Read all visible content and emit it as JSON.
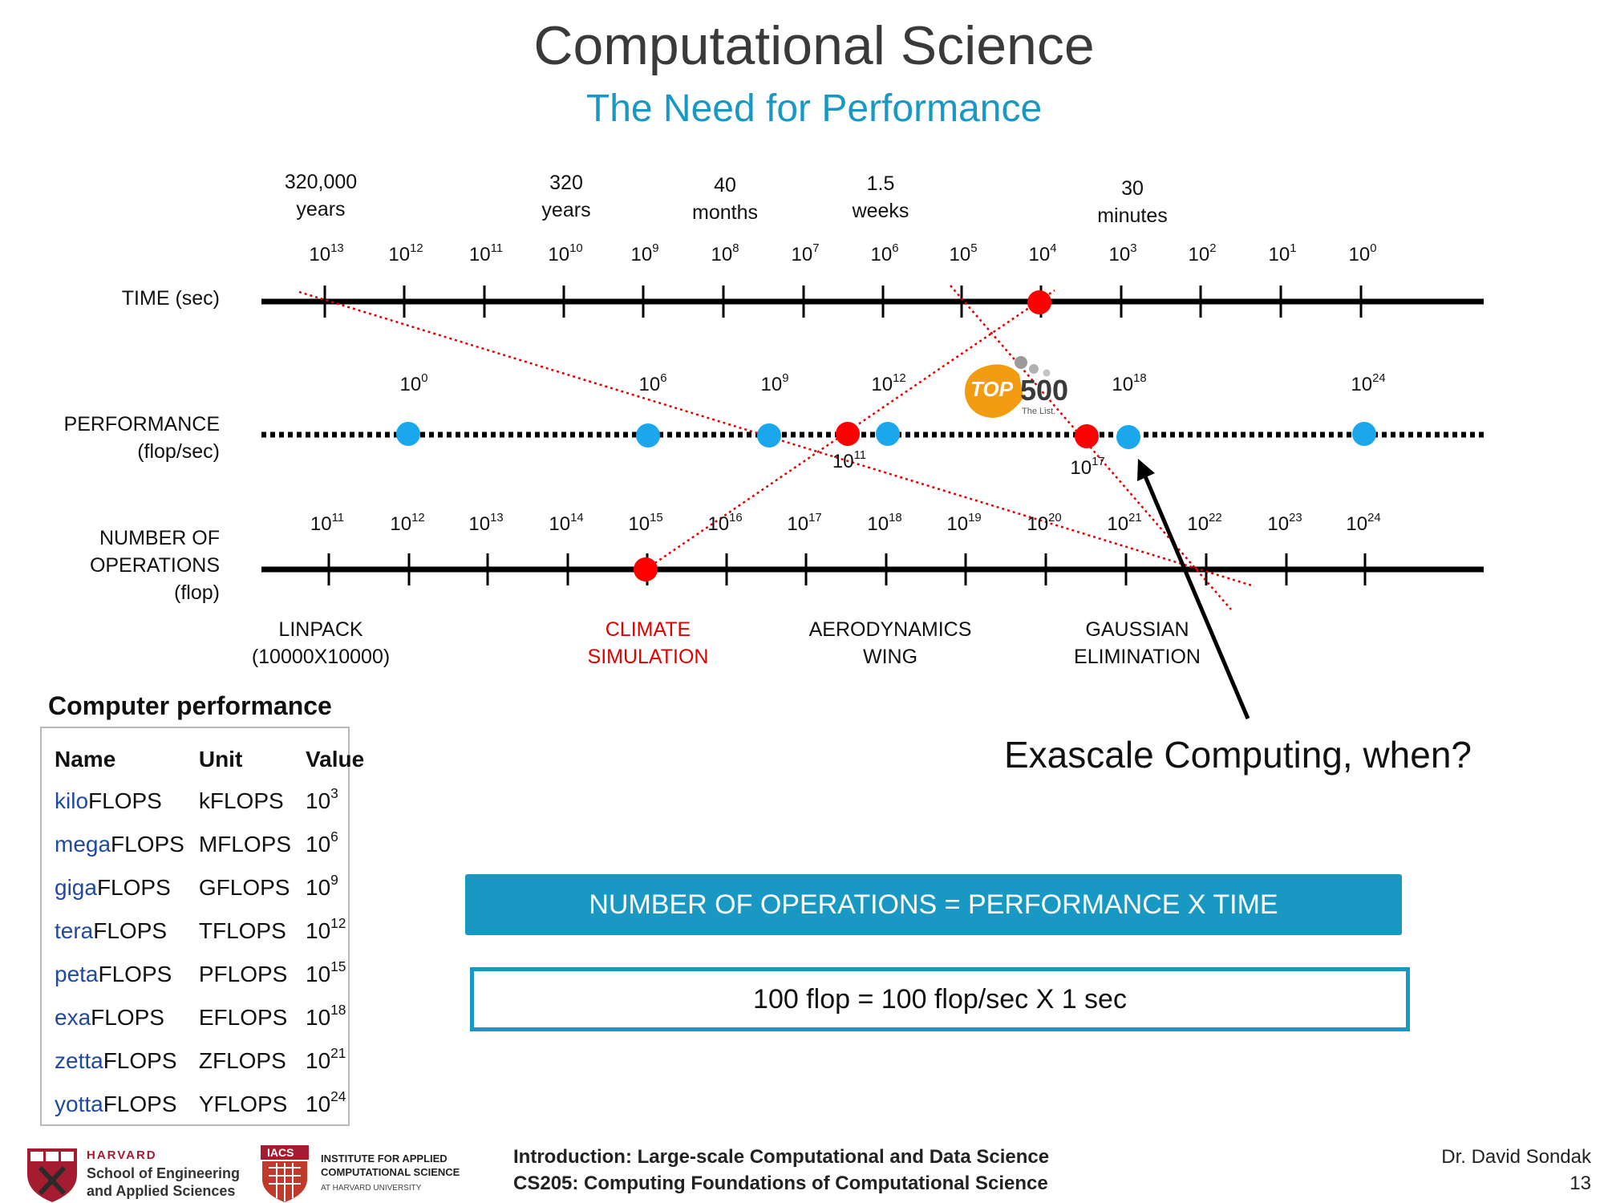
{
  "slide": {
    "title": "Computational Science",
    "subtitle": "The Need for Performance"
  },
  "diagram": {
    "time_labels": [
      {
        "line1": "320,000",
        "line2": "years"
      },
      {
        "line1": "320",
        "line2": "years"
      },
      {
        "line1": "40",
        "line2": "months"
      },
      {
        "line1": "1.5",
        "line2": "weeks"
      },
      {
        "line1": "30",
        "line2": "minutes"
      }
    ],
    "time_axis": {
      "label": "TIME (sec)",
      "tick_base": "10",
      "tick_exponents": [
        "13",
        "12",
        "11",
        "10",
        "9",
        "8",
        "7",
        "6",
        "5",
        "4",
        "3",
        "2",
        "1",
        "0"
      ]
    },
    "performance_axis": {
      "label_line1": "PERFORMANCE",
      "label_line2": "(flop/sec)",
      "tick_base": "10",
      "above_exponents": [
        "0",
        "6",
        "9",
        "12",
        "18",
        "24"
      ],
      "below_exponents": [
        "11",
        "17"
      ]
    },
    "operations_axis": {
      "label_line1": "NUMBER OF",
      "label_line2": "OPERATIONS",
      "label_line3": "(flop)",
      "tick_base": "10",
      "tick_exponents": [
        "11",
        "12",
        "13",
        "14",
        "15",
        "16",
        "17",
        "18",
        "19",
        "20",
        "21",
        "22",
        "23",
        "24"
      ]
    },
    "problems": [
      {
        "line1": "LINPACK",
        "line2": "(10000X10000)",
        "color": "#111111"
      },
      {
        "line1": "CLIMATE",
        "line2": "SIMULATION",
        "color": "#e00000"
      },
      {
        "line1": "AERODYNAMICS",
        "line2": "WING",
        "color": "#111111"
      },
      {
        "line1": "GAUSSIAN",
        "line2": "ELIMINATION",
        "color": "#111111"
      }
    ],
    "top500_logo": {
      "word1": "TOP",
      "word2": "500",
      "tagline": "The List."
    },
    "colors": {
      "blue_dot": "#1aa7ec",
      "red_dot": "#ff0000",
      "guide_line": "#e00000",
      "accent": "#1a98c4"
    }
  },
  "exascale_question": "Exascale Computing, when?",
  "equations": {
    "main": "NUMBER OF OPERATIONS = PERFORMANCE X TIME",
    "example": "100 flop = 100 flop/sec X 1 sec"
  },
  "computer_performance": {
    "title": "Computer performance",
    "headers": [
      "Name",
      "Unit",
      "Value"
    ],
    "rows": [
      {
        "prefix": "kilo",
        "suffix": "FLOPS",
        "unit": "kFLOPS",
        "base": "10",
        "exp": "3"
      },
      {
        "prefix": "mega",
        "suffix": "FLOPS",
        "unit": "MFLOPS",
        "base": "10",
        "exp": "6"
      },
      {
        "prefix": "giga",
        "suffix": "FLOPS",
        "unit": "GFLOPS",
        "base": "10",
        "exp": "9"
      },
      {
        "prefix": "tera",
        "suffix": "FLOPS",
        "unit": "TFLOPS",
        "base": "10",
        "exp": "12"
      },
      {
        "prefix": "peta",
        "suffix": "FLOPS",
        "unit": "PFLOPS",
        "base": "10",
        "exp": "15"
      },
      {
        "prefix": "exa",
        "suffix": "FLOPS",
        "unit": "EFLOPS",
        "base": "10",
        "exp": "18"
      },
      {
        "prefix": "zetta",
        "suffix": "FLOPS",
        "unit": "ZFLOPS",
        "base": "10",
        "exp": "21"
      },
      {
        "prefix": "yotta",
        "suffix": "FLOPS",
        "unit": "YFLOPS",
        "base": "10",
        "exp": "24"
      }
    ]
  },
  "footer": {
    "harvard": {
      "name": "HARVARD",
      "line1": "School of Engineering",
      "line2": "and Applied Sciences"
    },
    "iacs": {
      "abbr": "IACS",
      "line1": "INSTITUTE FOR APPLIED",
      "line2": "COMPUTATIONAL SCIENCE",
      "line3": "AT HARVARD UNIVERSITY"
    },
    "course_line1": "Introduction: Large-scale Computational and Data Science",
    "course_line2": "CS205: Computing Foundations of Computational Science",
    "author": "Dr. David Sondak",
    "page": "13"
  }
}
